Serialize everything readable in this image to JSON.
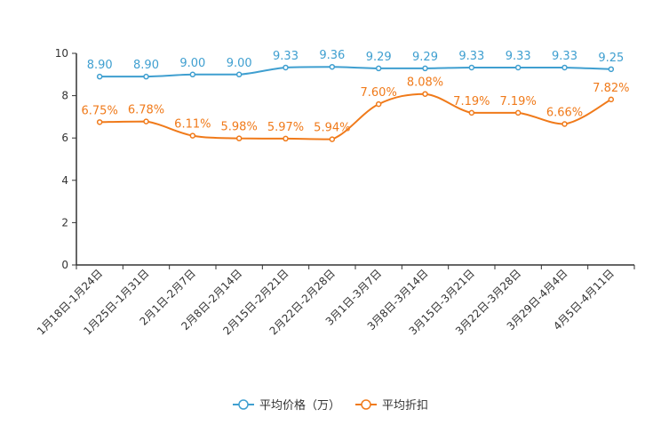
{
  "chart_data": {
    "type": "line",
    "title": "",
    "xlabel": "",
    "ylabel": "",
    "ylim": [
      0,
      10
    ],
    "yticks": [
      0,
      2,
      4,
      6,
      8,
      10
    ],
    "ytick_labels": [
      "0",
      "2",
      "4",
      "6",
      "8",
      "10"
    ],
    "grid": false,
    "legend_position": "bottom-center",
    "categories": [
      "1月18日-1月24日",
      "1月25日-1月31日",
      "2月1日-2月7日",
      "2月8日-2月14日",
      "2月15日-2月21日",
      "2月22日-2月28日",
      "3月1日-3月7日",
      "3月8日-3月14日",
      "3月15日-3月21日",
      "3月22日-3月28日",
      "3月29日-4月4日",
      "4月5日-4月11日"
    ],
    "series": [
      {
        "name": "平均价格（万）",
        "color": "#3f9fd0",
        "values": [
          8.9,
          8.9,
          9.0,
          9.0,
          9.33,
          9.36,
          9.29,
          9.29,
          9.33,
          9.33,
          9.33,
          9.25
        ],
        "labels": [
          "8.90",
          "8.90",
          "9.00",
          "9.00",
          "9.33",
          "9.36",
          "9.29",
          "9.29",
          "9.33",
          "9.33",
          "9.33",
          "9.25"
        ]
      },
      {
        "name": "平均折扣",
        "color": "#f07a1a",
        "values": [
          6.75,
          6.78,
          6.11,
          5.98,
          5.97,
          5.94,
          7.6,
          8.08,
          7.19,
          7.19,
          6.66,
          7.82
        ],
        "labels": [
          "6.75%",
          "6.78%",
          "6.11%",
          "5.98%",
          "5.97%",
          "5.94%",
          "7.60%",
          "8.08%",
          "7.19%",
          "7.19%",
          "6.66%",
          "7.82%"
        ]
      }
    ]
  }
}
